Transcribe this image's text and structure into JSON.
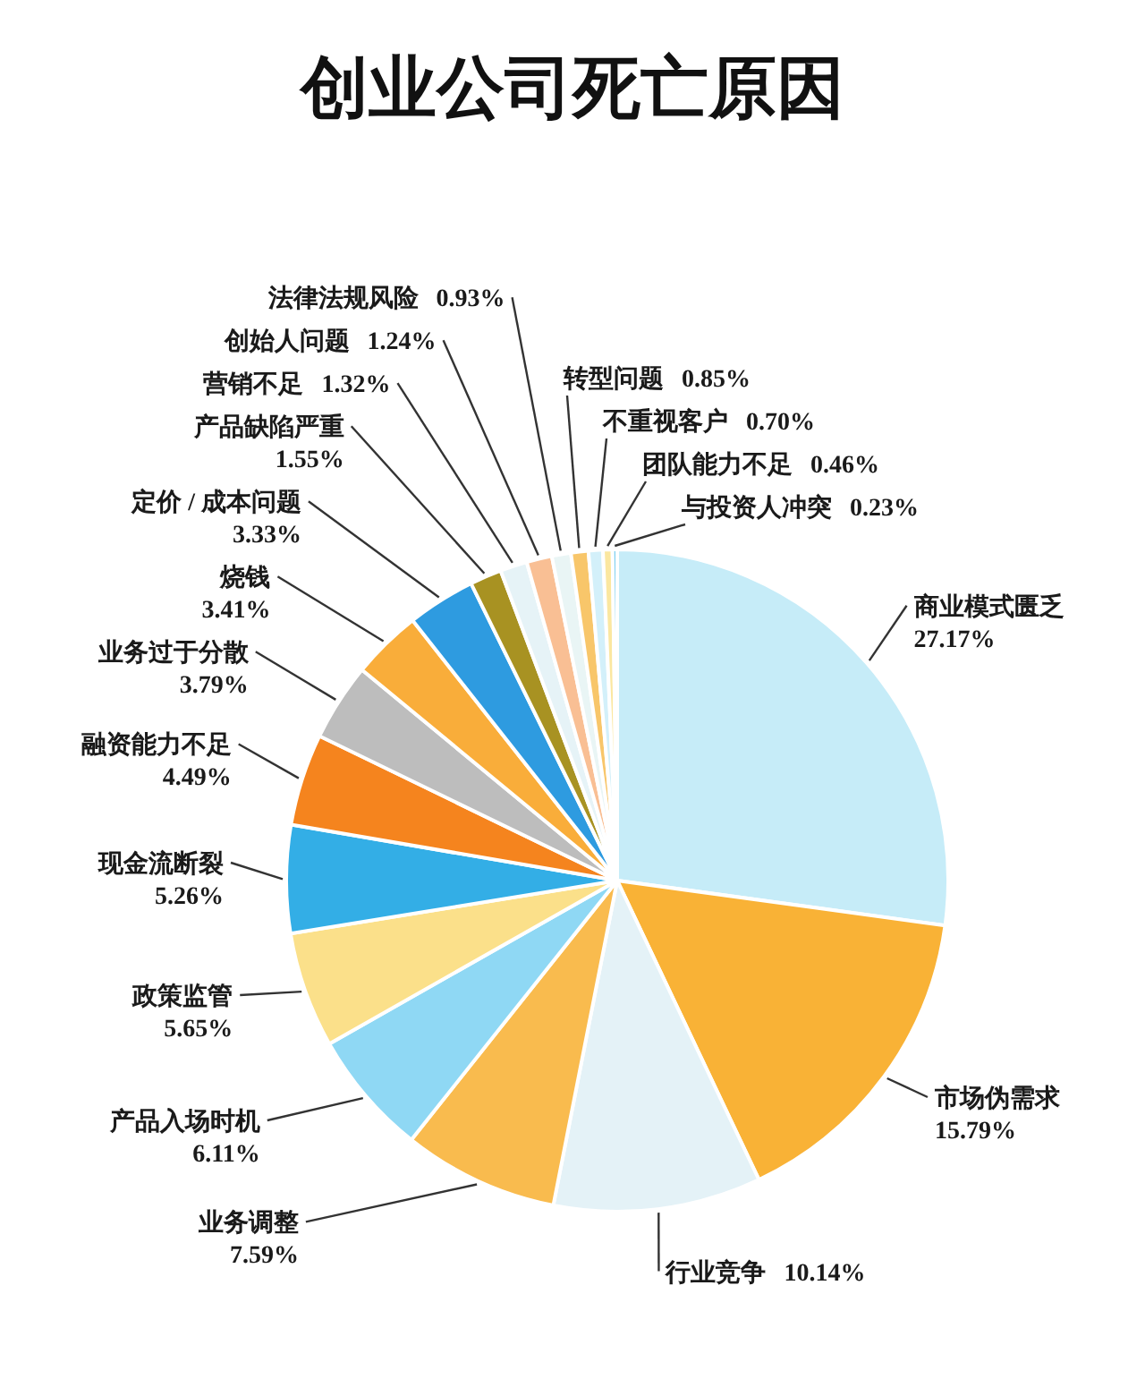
{
  "chart_data": {
    "type": "pie",
    "title": "创业公司死亡原因",
    "categories": [
      "商业模式匮乏",
      "市场伪需求",
      "行业竞争",
      "业务调整",
      "产品入场时机",
      "政策监管",
      "现金流断裂",
      "融资能力不足",
      "业务过于分散",
      "烧钱",
      "定价 / 成本问题",
      "产品缺陷严重",
      "营销不足",
      "创始人问题",
      "法律法规风险",
      "转型问题",
      "不重视客户",
      "团队能力不足",
      "与投资人冲突"
    ],
    "values": [
      27.17,
      15.79,
      10.14,
      7.59,
      6.11,
      5.65,
      5.26,
      4.49,
      3.79,
      3.41,
      3.33,
      1.55,
      1.32,
      1.24,
      0.93,
      0.85,
      0.7,
      0.46,
      0.23
    ],
    "colors": [
      "#c6ecf8",
      "#f9b236",
      "#e4f2f7",
      "#f9bb4e",
      "#8fd8f4",
      "#fbe08a",
      "#33aee6",
      "#f5841e",
      "#bdbdbd",
      "#f9ad3a",
      "#2e9be0",
      "#a89222",
      "#e6f3f7",
      "#f9bf94",
      "#e9f5f5",
      "#f8c66a",
      "#d3f0fa",
      "#fbe7a0",
      "#7fd0f0"
    ],
    "value_labels": [
      "27.17%",
      "15.79%",
      "10.14%",
      "7.59%",
      "6.11%",
      "5.65%",
      "5.26%",
      "4.49%",
      "3.79%",
      "3.41%",
      "3.33%",
      "1.55%",
      "1.32%",
      "1.24%",
      "0.93%",
      "0.85%",
      "0.70%",
      "0.46%",
      "0.23%"
    ]
  }
}
